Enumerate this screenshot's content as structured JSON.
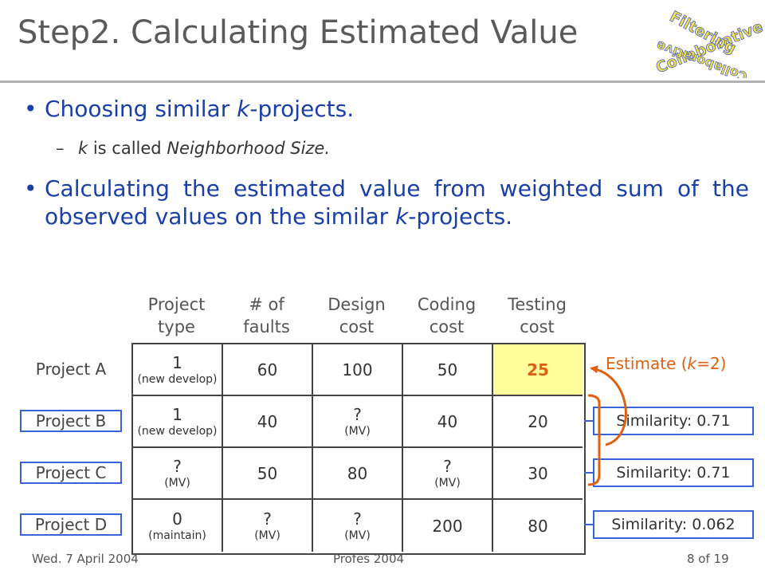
{
  "slide": {
    "title": "Step2. Calculating Estimated Value",
    "logo_text": [
      "Collaborative",
      "Filtering"
    ]
  },
  "bullets": {
    "b1_prefix": "Choosing similar ",
    "b1_italic": "k",
    "b1_suffix": "-projects.",
    "b2_italic1": "k",
    "b2_middle": " is called ",
    "b2_italic2": "Neighborhood Size.",
    "b3_prefix": "Calculating the estimated value from weighted sum of the observed values on the similar ",
    "b3_italic": "k",
    "b3_suffix": "-projects."
  },
  "table": {
    "columns": [
      {
        "line1": "Project",
        "line2": "type"
      },
      {
        "line1": "# of",
        "line2": "faults"
      },
      {
        "line1": "Design",
        "line2": "cost"
      },
      {
        "line1": "Coding",
        "line2": "cost"
      },
      {
        "line1": "Testing",
        "line2": "cost"
      }
    ],
    "rows": [
      {
        "label": "Project A",
        "similarity": "",
        "cells": [
          {
            "v": "1",
            "s": "(new develop)"
          },
          {
            "v": "60",
            "s": ""
          },
          {
            "v": "100",
            "s": ""
          },
          {
            "v": "50",
            "s": ""
          },
          {
            "v": "25",
            "s": ""
          }
        ]
      },
      {
        "label": "Project B",
        "similarity": "Similarity: 0.71",
        "cells": [
          {
            "v": "1",
            "s": "(new develop)"
          },
          {
            "v": "40",
            "s": ""
          },
          {
            "v": "?",
            "s": "(MV)"
          },
          {
            "v": "40",
            "s": ""
          },
          {
            "v": "20",
            "s": ""
          }
        ]
      },
      {
        "label": "Project C",
        "similarity": "Similarity: 0.71",
        "cells": [
          {
            "v": "?",
            "s": "(MV)"
          },
          {
            "v": "50",
            "s": ""
          },
          {
            "v": "80",
            "s": ""
          },
          {
            "v": "?",
            "s": "(MV)"
          },
          {
            "v": "30",
            "s": ""
          }
        ]
      },
      {
        "label": "Project D",
        "similarity": "Similarity: 0.062",
        "cells": [
          {
            "v": "0",
            "s": "(maintain)"
          },
          {
            "v": "?",
            "s": "(MV)"
          },
          {
            "v": "?",
            "s": "(MV)"
          },
          {
            "v": "200",
            "s": ""
          },
          {
            "v": "80",
            "s": ""
          }
        ]
      }
    ],
    "highlight_color": "#fffe9a"
  },
  "estimate": {
    "prefix": "Estimate (",
    "italic": "k",
    "suffix": "=2)"
  },
  "colors": {
    "title": "#5a5a5a",
    "bullet": "#1a3fa8",
    "box_border": "#3a62d8",
    "accent": "#e06010"
  },
  "footer": {
    "date": "Wed. 7 April 2004",
    "center": "Profes 2004",
    "page": "8 of 19"
  }
}
